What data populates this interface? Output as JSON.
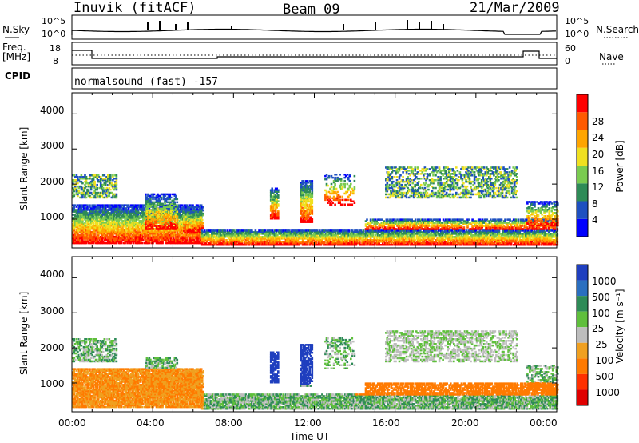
{
  "header": {
    "site": "Inuvik (fitACF)",
    "beam": "Beam 09",
    "date": "21/Mar/2009"
  },
  "panels": {
    "nsky_label": "N.Sky",
    "nsky_ticks": [
      "10^5",
      "10^0"
    ],
    "nsearch_label": "N.Search",
    "nsearch_ticks": [
      "10^5",
      "10^0"
    ],
    "freq_label_1": "Freq.",
    "freq_label_2": "[MHz]",
    "freq_ticks": [
      "18",
      "8"
    ],
    "nave_label": "Nave",
    "nave_ticks": [
      "60",
      "0"
    ],
    "cpid_label": "CPID",
    "cpid_text": "normalsound (fast) -157"
  },
  "chart_data": [
    {
      "type": "heatmap",
      "name": "power",
      "ylabel": "Slant Range [km]",
      "yticks": [
        "1000",
        "2000",
        "3000",
        "4000"
      ],
      "ylim": [
        180,
        4600
      ],
      "colorbar_label": "Power [dB]",
      "colorbar_ticks": [
        "4",
        "8",
        "12",
        "16",
        "20",
        "24",
        "28"
      ],
      "colors": [
        "#0000ff",
        "#1e50c0",
        "#2e8b57",
        "#7acb50",
        "#f0e020",
        "#ffa500",
        "#ff5a00",
        "#ff0000"
      ]
    },
    {
      "type": "heatmap",
      "name": "velocity",
      "ylabel": "Slant Range [km]",
      "yticks": [
        "1000",
        "2000",
        "3000",
        "4000"
      ],
      "ylim": [
        180,
        4600
      ],
      "colorbar_label": "Velocity [m s⁻¹]",
      "colorbar_ticks": [
        "1000",
        "500",
        "100",
        "25",
        "-25",
        "-100",
        "-500",
        "-1000"
      ],
      "colors": [
        "#1f3fbf",
        "#2a6fc0",
        "#2e8b57",
        "#5fbf3c",
        "#bdbdbd",
        "#f0a020",
        "#ff7a00",
        "#ff3000",
        "#e00000"
      ]
    }
  ],
  "xaxis": {
    "ticks": [
      "00:00",
      "04:00",
      "08:00",
      "12:00",
      "16:00",
      "20:00",
      "00:00"
    ],
    "label": "Time UT"
  }
}
